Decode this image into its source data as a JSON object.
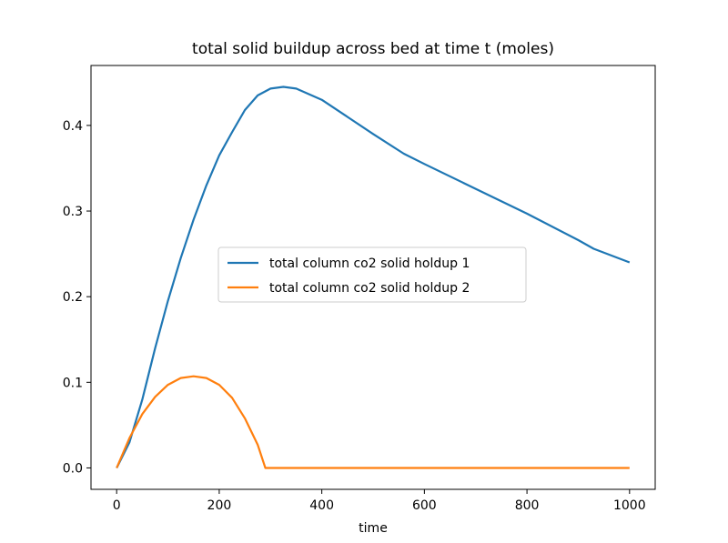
{
  "chart_data": {
    "type": "line",
    "title": "total solid buildup across bed at time t (moles)",
    "xlabel": "time",
    "ylabel": "",
    "xlim": [
      -50,
      1050
    ],
    "ylim": [
      -0.025,
      0.47
    ],
    "xticks": [
      0,
      200,
      400,
      600,
      800,
      1000
    ],
    "xtick_labels": [
      "0",
      "200",
      "400",
      "600",
      "800",
      "1000"
    ],
    "yticks": [
      0.0,
      0.1,
      0.2,
      0.3,
      0.4
    ],
    "ytick_labels": [
      "0.0",
      "0.1",
      "0.2",
      "0.3",
      "0.4"
    ],
    "grid": false,
    "legend_position": "center",
    "series": [
      {
        "name": "total column co2 solid holdup 1",
        "color": "#1f77b4",
        "x": [
          0,
          25,
          50,
          75,
          100,
          125,
          150,
          175,
          200,
          225,
          250,
          275,
          300,
          325,
          350,
          400,
          450,
          500,
          560,
          600,
          700,
          800,
          900,
          930,
          1000
        ],
        "y": [
          0.0,
          0.03,
          0.08,
          0.14,
          0.195,
          0.245,
          0.29,
          0.33,
          0.365,
          0.392,
          0.418,
          0.435,
          0.443,
          0.445,
          0.443,
          0.43,
          0.41,
          0.39,
          0.367,
          0.355,
          0.326,
          0.297,
          0.266,
          0.256,
          0.24
        ]
      },
      {
        "name": "total column co2 solid holdup 2",
        "color": "#ff7f0e",
        "x": [
          0,
          25,
          50,
          75,
          100,
          125,
          150,
          175,
          200,
          225,
          250,
          275,
          290,
          300,
          400,
          500,
          600,
          700,
          800,
          900,
          1000
        ],
        "y": [
          0.0,
          0.035,
          0.063,
          0.083,
          0.097,
          0.105,
          0.107,
          0.105,
          0.097,
          0.082,
          0.058,
          0.027,
          0.0,
          0.0,
          0.0,
          0.0,
          0.0,
          0.0,
          0.0,
          0.0,
          0.0
        ]
      }
    ]
  }
}
